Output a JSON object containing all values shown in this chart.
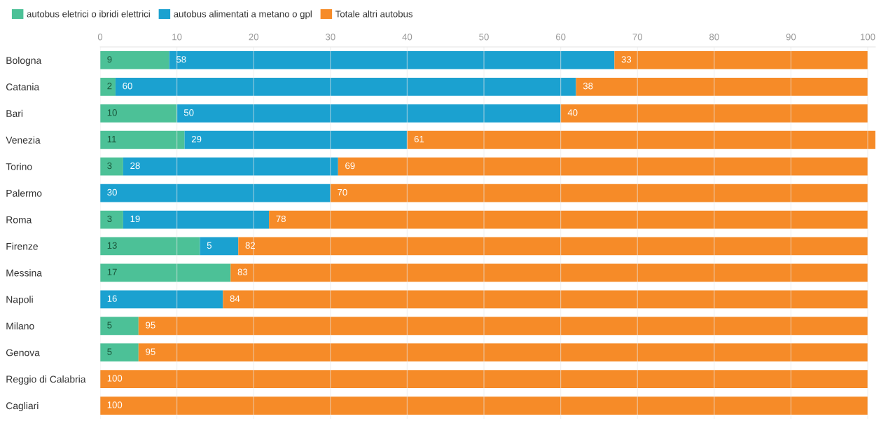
{
  "chart_data": {
    "type": "bar",
    "orientation": "horizontal",
    "stacked": true,
    "categories": [
      "Bologna",
      "Catania",
      "Bari",
      "Venezia",
      "Torino",
      "Palermo",
      "Roma",
      "Firenze",
      "Messina",
      "Napoli",
      "Milano",
      "Genova",
      "Reggio di Calabria",
      "Cagliari"
    ],
    "series": [
      {
        "name": "autobus eletrici o ibridi elettrici",
        "color": "#4cc197",
        "values": [
          9,
          2,
          10,
          11,
          3,
          null,
          3,
          13,
          17,
          null,
          5,
          5,
          null,
          null
        ]
      },
      {
        "name": "autobus alimentati a metano o gpl",
        "color": "#1ba1d0",
        "values": [
          58,
          60,
          50,
          29,
          28,
          30,
          19,
          5,
          null,
          16,
          null,
          null,
          null,
          null
        ]
      },
      {
        "name": "Totale altri autobus",
        "color": "#f68b28",
        "values": [
          33,
          38,
          40,
          61,
          69,
          70,
          78,
          82,
          83,
          84,
          95,
          95,
          100,
          100
        ]
      }
    ],
    "xlim": [
      0,
      101
    ],
    "xticks": [
      0,
      10,
      20,
      30,
      40,
      50,
      60,
      70,
      80,
      90,
      100
    ],
    "grid": "x",
    "legend": "top left",
    "data_labels": true
  }
}
